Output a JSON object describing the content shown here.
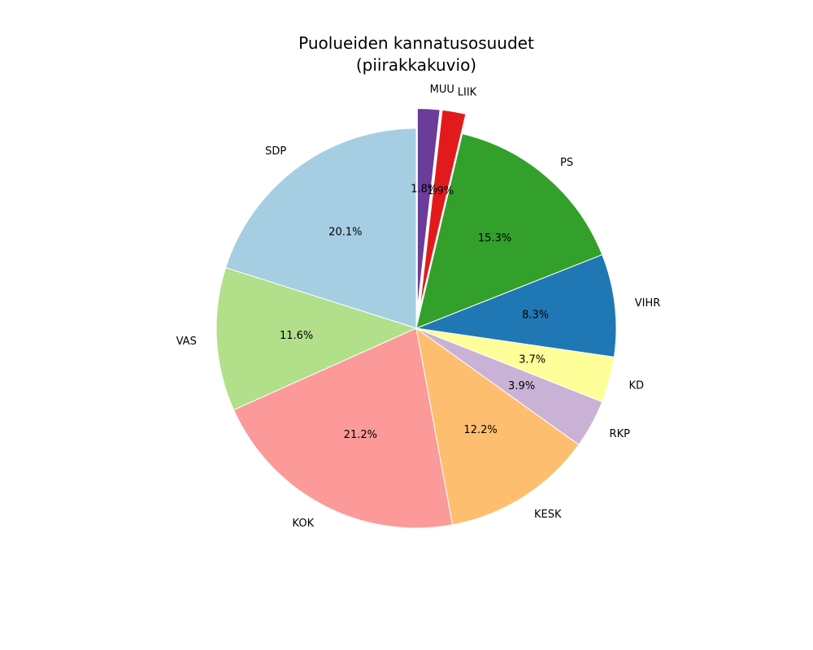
{
  "chart_data": {
    "type": "pie",
    "title_line1": "Puolueiden kannatusosuudet",
    "title_line2": "(piirakkakuvio)",
    "start_angle_deg": 90,
    "direction": "counterclockwise",
    "slices": [
      {
        "label": "SDP",
        "value": 20.1,
        "pct_text": "20.1%",
        "color": "#a6cee3",
        "exploded": false
      },
      {
        "label": "VAS",
        "value": 11.6,
        "pct_text": "11.6%",
        "color": "#b2df8a",
        "exploded": false
      },
      {
        "label": "KOK",
        "value": 21.2,
        "pct_text": "21.2%",
        "color": "#fb9a99",
        "exploded": false
      },
      {
        "label": "KESK",
        "value": 12.2,
        "pct_text": "12.2%",
        "color": "#fdbf6f",
        "exploded": false
      },
      {
        "label": "RKP",
        "value": 3.9,
        "pct_text": "3.9%",
        "color": "#cab2d6",
        "exploded": false
      },
      {
        "label": "KD",
        "value": 3.7,
        "pct_text": "3.7%",
        "color": "#ffff99",
        "exploded": false
      },
      {
        "label": "VIHR",
        "value": 8.3,
        "pct_text": "8.3%",
        "color": "#1f78b4",
        "exploded": false
      },
      {
        "label": "PS",
        "value": 15.3,
        "pct_text": "15.3%",
        "color": "#33a02c",
        "exploded": false
      },
      {
        "label": "LIIK",
        "value": 1.9,
        "pct_text": "1.9%",
        "color": "#e31a1c",
        "exploded": true
      },
      {
        "label": "MUU",
        "value": 1.8,
        "pct_text": "1.8%",
        "color": "#6a3d9a",
        "exploded": true
      }
    ]
  }
}
